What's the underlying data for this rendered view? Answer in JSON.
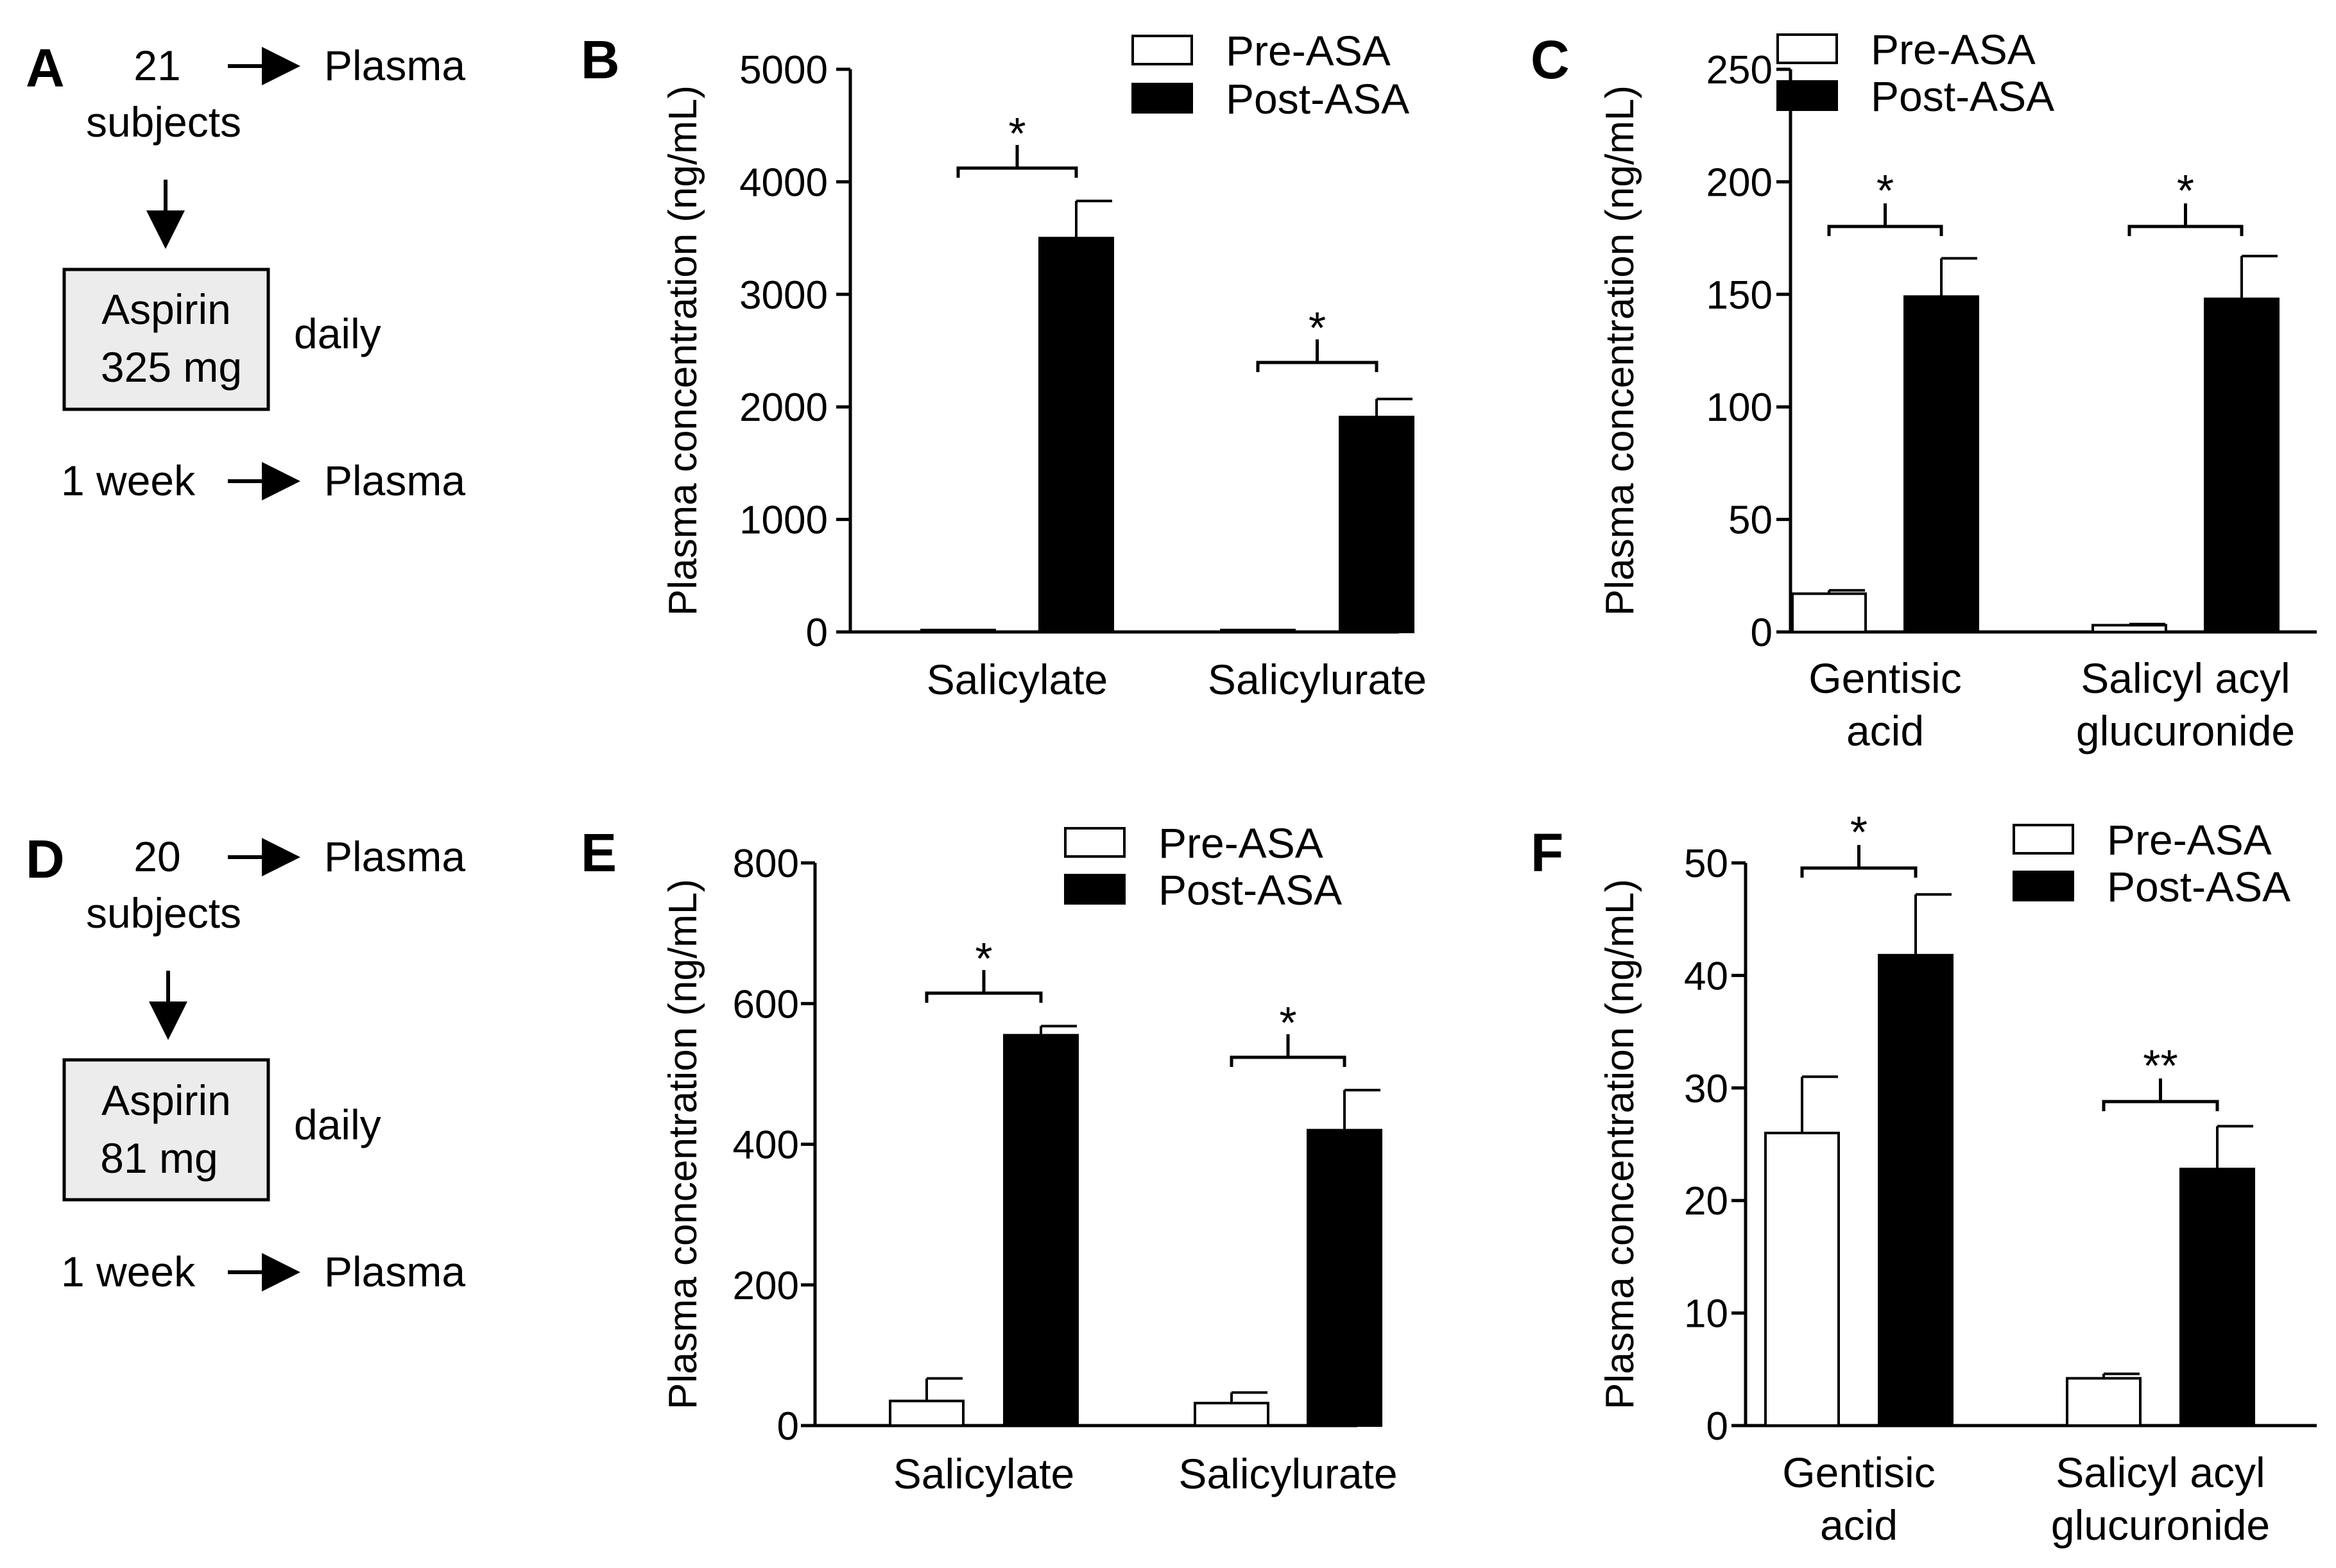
{
  "schemas": [
    {
      "panel": "A",
      "subjects_count": "21",
      "subjects_word": "subjects",
      "plasma_top": "Plasma",
      "drug_name": "Aspirin",
      "dose": "325 mg",
      "frequency": "daily",
      "duration": "1 week",
      "plasma_bottom": "Plasma"
    },
    {
      "panel": "D",
      "subjects_count": "20",
      "subjects_word": "subjects",
      "plasma_top": "Plasma",
      "drug_name": "Aspirin",
      "dose": "81 mg",
      "frequency": "daily",
      "duration": "1 week",
      "plasma_bottom": "Plasma"
    }
  ],
  "chart_data": [
    {
      "panel": "B",
      "type": "bar",
      "ylabel": "Plasma concentration (ng/mL)",
      "ylim": [
        0,
        5000
      ],
      "yticks": [
        0,
        1000,
        2000,
        3000,
        4000,
        5000
      ],
      "categories": [
        "Salicylate",
        "Salicylurate"
      ],
      "series": [
        {
          "name": "Pre-ASA",
          "fill": "#ffffff",
          "values": [
            8,
            10
          ],
          "errors": [
            0,
            0
          ]
        },
        {
          "name": "Post-ASA",
          "fill": "#000000",
          "values": [
            3500,
            1910
          ],
          "errors": [
            330,
            160
          ]
        }
      ],
      "significance": [
        "*",
        "*"
      ],
      "legend": [
        "Pre-ASA",
        "Post-ASA"
      ]
    },
    {
      "panel": "C",
      "type": "bar",
      "ylabel": "Plasma concentration (ng/mL)",
      "ylim": [
        0,
        250
      ],
      "yticks": [
        0,
        50,
        100,
        150,
        200,
        250
      ],
      "categories": [
        "Gentisic\nacid",
        "Salicyl acyl\nglucuronide"
      ],
      "series": [
        {
          "name": "Pre-ASA",
          "fill": "#ffffff",
          "values": [
            17,
            3
          ],
          "errors": [
            1.5,
            0.5
          ]
        },
        {
          "name": "Post-ASA",
          "fill": "#000000",
          "values": [
            149,
            148
          ],
          "errors": [
            17,
            19
          ]
        }
      ],
      "significance": [
        "*",
        "*"
      ],
      "legend": [
        "Pre-ASA",
        "Post-ASA"
      ]
    },
    {
      "panel": "E",
      "type": "bar",
      "ylabel": "Plasma concentration (ng/mL)",
      "ylim": [
        0,
        800
      ],
      "yticks": [
        0,
        200,
        400,
        600,
        800
      ],
      "categories": [
        "Salicylate",
        "Salicylurate"
      ],
      "series": [
        {
          "name": "Pre-ASA",
          "fill": "#ffffff",
          "values": [
            35,
            32
          ],
          "errors": [
            32,
            15
          ]
        },
        {
          "name": "Post-ASA",
          "fill": "#000000",
          "values": [
            555,
            420
          ],
          "errors": [
            13,
            57
          ]
        }
      ],
      "significance": [
        "*",
        "*"
      ],
      "legend": [
        "Pre-ASA",
        "Post-ASA"
      ]
    },
    {
      "panel": "F",
      "type": "bar",
      "ylabel": "Plasma concentration (ng/mL)",
      "ylim": [
        0,
        50
      ],
      "yticks": [
        0,
        10,
        20,
        30,
        40,
        50
      ],
      "categories": [
        "Gentisic\nacid",
        "Salicyl acyl\nglucuronide"
      ],
      "series": [
        {
          "name": "Pre-ASA",
          "fill": "#ffffff",
          "values": [
            26,
            4.2
          ],
          "errors": [
            5,
            0.4
          ]
        },
        {
          "name": "Post-ASA",
          "fill": "#000000",
          "values": [
            41.8,
            22.8
          ],
          "errors": [
            5.4,
            3.8
          ]
        }
      ],
      "significance": [
        "*",
        "**"
      ],
      "legend": [
        "Pre-ASA",
        "Post-ASA"
      ]
    }
  ]
}
